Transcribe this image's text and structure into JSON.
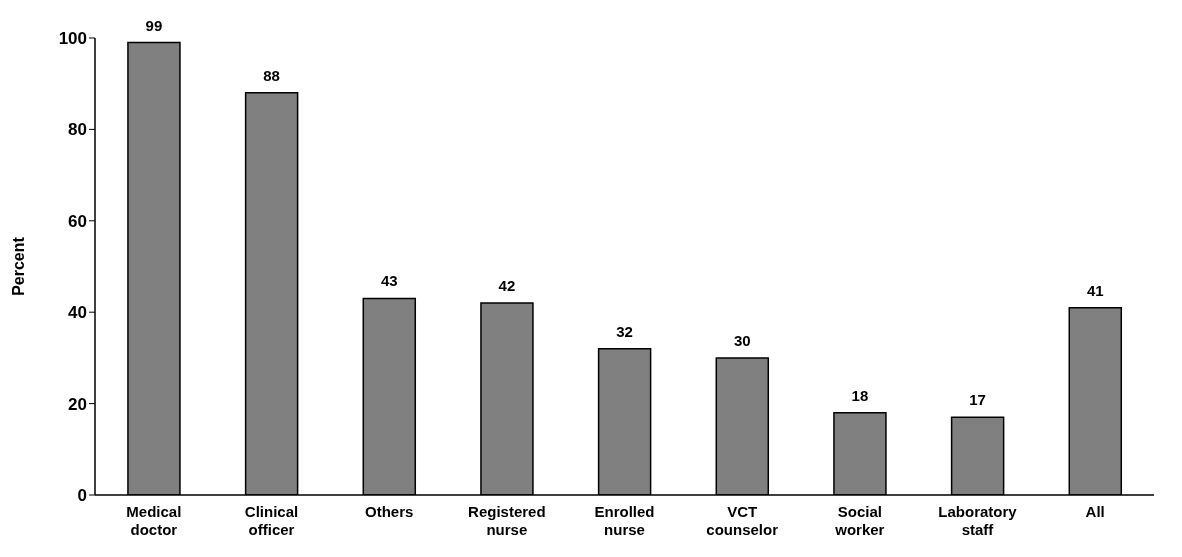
{
  "chart_data": {
    "type": "bar",
    "ylabel": "Percent",
    "categories": [
      "Medical doctor",
      "Clinical officer",
      "Others",
      "Registered nurse",
      "Enrolled nurse",
      "VCT counselor",
      "Social worker",
      "Laboratory staff",
      "All"
    ],
    "values": [
      99,
      88,
      43,
      42,
      32,
      30,
      18,
      17,
      41
    ],
    "color": "#808080",
    "ylim": [
      0,
      100
    ],
    "yticks": [
      0,
      20,
      40,
      60,
      80,
      100
    ],
    "data_labels": true,
    "grid": false,
    "legend": false
  }
}
